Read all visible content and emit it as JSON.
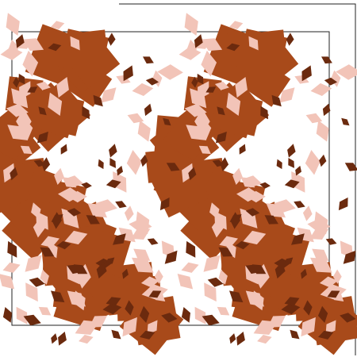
{
  "palette": [
    "#a84a1a",
    "#f2c4b8",
    "#6b2a0e"
  ]
}
